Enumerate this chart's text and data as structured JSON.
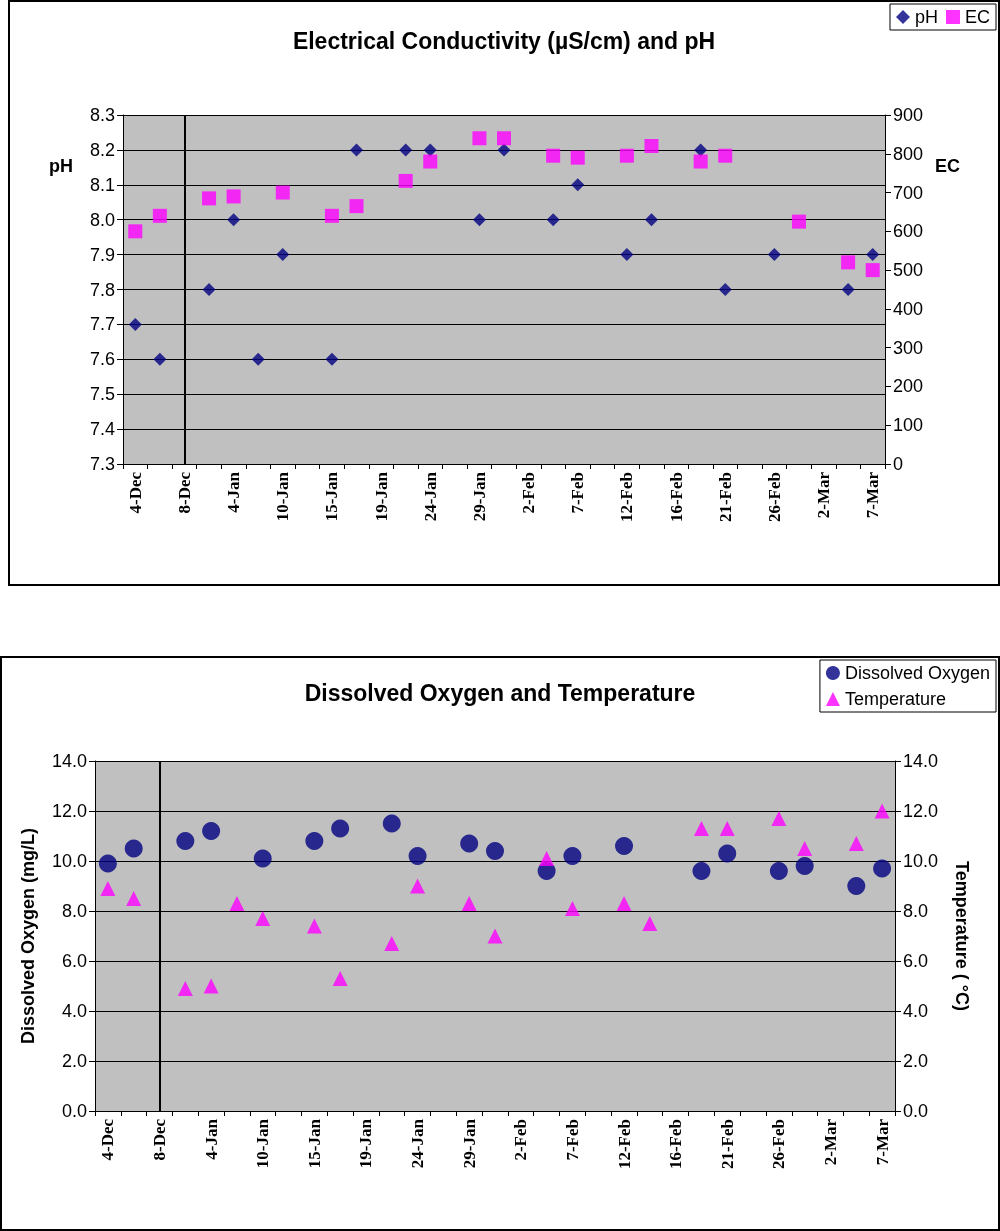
{
  "chart_data": [
    {
      "type": "scatter",
      "title": "Electrical Conductivity (µS/cm) and pH",
      "ylabel": "pH",
      "y2label": "EC",
      "categories": [
        "4-Dec",
        null,
        "8-Dec",
        null,
        "4-Jan",
        null,
        "10-Jan",
        null,
        "15-Jan",
        null,
        "19-Jan",
        null,
        "24-Jan",
        null,
        "29-Jan",
        null,
        "2-Feb",
        null,
        "7-Feb",
        null,
        "12-Feb",
        null,
        "16-Feb",
        null,
        "21-Feb",
        null,
        "26-Feb",
        null,
        "2-Mar",
        null,
        "7-Mar"
      ],
      "series": [
        {
          "name": "pH",
          "color": "#000080",
          "marker": "diamond",
          "values": [
            7.7,
            7.6,
            null,
            7.8,
            8.0,
            7.6,
            7.9,
            null,
            7.6,
            8.2,
            null,
            8.2,
            8.2,
            null,
            8.0,
            8.2,
            null,
            8.0,
            8.1,
            null,
            7.9,
            8.0,
            null,
            8.2,
            7.8,
            null,
            7.9,
            null,
            null,
            7.8,
            7.9
          ]
        },
        {
          "name": "EC",
          "color": "#ff00ff",
          "marker": "square",
          "axis": "y2",
          "values": [
            600,
            640,
            null,
            685,
            690,
            null,
            700,
            null,
            640,
            665,
            null,
            730,
            780,
            null,
            840,
            840,
            null,
            795,
            790,
            null,
            795,
            820,
            null,
            780,
            795,
            null,
            null,
            625,
            null,
            520,
            500
          ]
        }
      ],
      "ylim": [
        7.3,
        8.3
      ],
      "yticks": [
        {
          "value": 7.3,
          "label": "7.3"
        },
        {
          "value": 7.4,
          "label": "7.4"
        },
        {
          "value": 7.5,
          "label": "7.5"
        },
        {
          "value": 7.6,
          "label": "7.6"
        },
        {
          "value": 7.7,
          "label": "7.7"
        },
        {
          "value": 7.8,
          "label": "7.8"
        },
        {
          "value": 7.9,
          "label": "7.9"
        },
        {
          "value": 8.0,
          "label": "8.0"
        },
        {
          "value": 8.1,
          "label": "8.1"
        },
        {
          "value": 8.2,
          "label": "8.2"
        },
        {
          "value": 8.3,
          "label": "8.3"
        }
      ],
      "y2lim": [
        0,
        900
      ],
      "y2ticks": [
        0,
        100,
        200,
        300,
        400,
        500,
        600,
        700,
        800,
        900
      ],
      "ref_lines": [
        {
          "axis": "x",
          "value": "8-Dec",
          "color": "#000000"
        }
      ],
      "grid": "y",
      "legend": "top right"
    },
    {
      "type": "scatter",
      "title": "Dissolved Oxygen and Temperature",
      "ylabel": "Dissolved Oxygen (mg/L)",
      "y2label": "Temperature ( °C)",
      "categories": [
        "4-Dec",
        null,
        "8-Dec",
        null,
        "4-Jan",
        null,
        "10-Jan",
        null,
        "15-Jan",
        null,
        "19-Jan",
        null,
        "24-Jan",
        null,
        "29-Jan",
        null,
        "2-Feb",
        null,
        "7-Feb",
        null,
        "12-Feb",
        null,
        "16-Feb",
        null,
        "21-Feb",
        null,
        "26-Feb",
        null,
        "2-Mar",
        null,
        "7-Mar"
      ],
      "series": [
        {
          "name": "Dissolved Oxygen",
          "color": "#000080",
          "marker": "circle",
          "values": [
            9.9,
            10.5,
            null,
            10.8,
            11.2,
            null,
            10.1,
            null,
            10.8,
            11.3,
            null,
            11.5,
            10.2,
            null,
            10.7,
            10.4,
            null,
            9.6,
            10.2,
            null,
            10.6,
            null,
            null,
            9.6,
            10.3,
            null,
            9.6,
            9.8,
            null,
            9.0,
            9.7
          ]
        },
        {
          "name": "Temperature",
          "color": "#ff00ff",
          "marker": "triangle",
          "axis": "y2",
          "values": [
            8.9,
            8.5,
            null,
            4.9,
            5.0,
            8.3,
            7.7,
            null,
            7.4,
            5.3,
            null,
            6.7,
            9.0,
            null,
            8.3,
            7.0,
            null,
            10.1,
            8.1,
            null,
            8.3,
            7.5,
            null,
            11.3,
            11.3,
            null,
            11.7,
            10.5,
            null,
            10.7,
            12.0
          ]
        }
      ],
      "ylim": [
        0,
        14
      ],
      "yticks": [
        {
          "value": 0,
          "label": "0.0"
        },
        {
          "value": 2,
          "label": "2.0"
        },
        {
          "value": 4,
          "label": "4.0"
        },
        {
          "value": 6,
          "label": "6.0"
        },
        {
          "value": 8,
          "label": "8.0"
        },
        {
          "value": 10,
          "label": "10.0"
        },
        {
          "value": 12,
          "label": "12.0"
        },
        {
          "value": 14,
          "label": "14.0"
        }
      ],
      "y2lim": [
        0,
        14
      ],
      "y2ticks": [
        {
          "value": 0,
          "label": "0.0"
        },
        {
          "value": 2,
          "label": "2.0"
        },
        {
          "value": 4,
          "label": "4.0"
        },
        {
          "value": 6,
          "label": "6.0"
        },
        {
          "value": 8,
          "label": "8.0"
        },
        {
          "value": 10,
          "label": "10.0"
        },
        {
          "value": 12,
          "label": "12.0"
        },
        {
          "value": 14,
          "label": "14.0"
        }
      ],
      "ref_lines": [
        {
          "axis": "x",
          "value": "8-Dec",
          "color": "#000000"
        }
      ],
      "grid": "y",
      "legend": "top right"
    }
  ]
}
